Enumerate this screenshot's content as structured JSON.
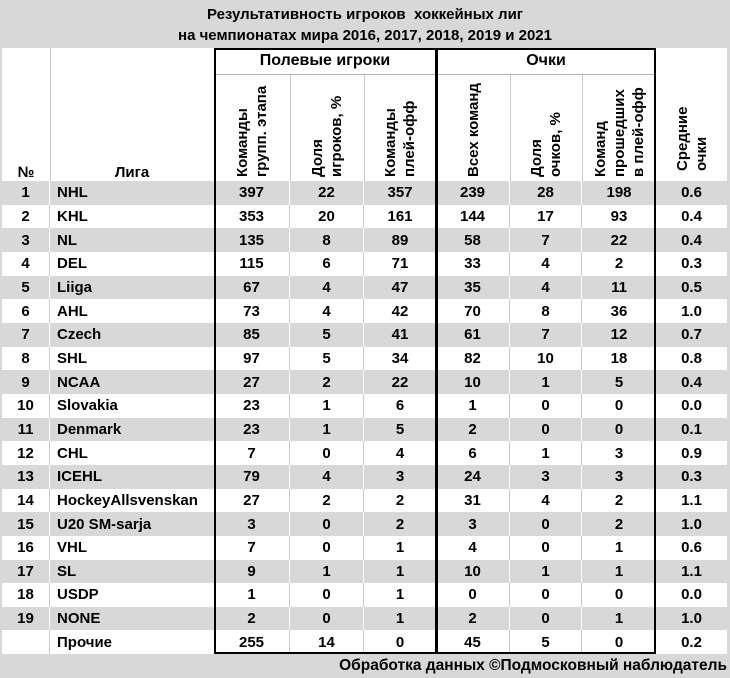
{
  "title": {
    "line1": "Результативность игроков  хоккейных лиг",
    "line2": "на чемпионатах мира 2016, 2017, 2018, 2019 и 2021"
  },
  "footer": {
    "credit": "Обработка данных ©Подмосковный наблюдатель"
  },
  "colors": {
    "stripe_gray": "#d8d8d8",
    "row_white": "#ffffff",
    "thick_border": "#000000",
    "thin_line_on_white": "#c9c9c9",
    "thin_line_on_gray": "#ffffff",
    "text": "#000000"
  },
  "chart_data": {
    "type": "table",
    "title": "Результативность игроков  хоккейных лиг на чемпионатах мира 2016, 2017, 2018, 2019 и 2021",
    "corner_headers": {
      "num": "№",
      "league": "Лига"
    },
    "column_groups": [
      {
        "label": "Полевые игроки",
        "columns": 3
      },
      {
        "label": "Очки",
        "columns": 3
      }
    ],
    "columns": [
      {
        "id": "teams_group_stage",
        "group": "Полевые игроки",
        "label_lines": [
          "Команды",
          "групп. этапа"
        ]
      },
      {
        "id": "players_share_pct",
        "group": "Полевые игроки",
        "label_lines": [
          "Доля",
          "игроков, %"
        ]
      },
      {
        "id": "teams_playoff",
        "group": "Полевые игроки",
        "label_lines": [
          "Команды",
          "плей-офф"
        ]
      },
      {
        "id": "points_all_teams",
        "group": "Очки",
        "label_lines": [
          "Всех команд"
        ]
      },
      {
        "id": "points_share_pct",
        "group": "Очки",
        "label_lines": [
          "Доля",
          "очков, %"
        ]
      },
      {
        "id": "points_playoff_teams",
        "group": "Очки",
        "label_lines": [
          "Команд",
          "прошедших",
          "в плей-офф"
        ]
      },
      {
        "id": "avg_points",
        "group": "",
        "label_lines": [
          "Средние",
          "очки"
        ]
      }
    ],
    "rows": [
      {
        "num": "1",
        "league": "NHL",
        "values": [
          "397",
          "22",
          "357",
          "239",
          "28",
          "198",
          "0.6"
        ]
      },
      {
        "num": "2",
        "league": "KHL",
        "values": [
          "353",
          "20",
          "161",
          "144",
          "17",
          "93",
          "0.4"
        ]
      },
      {
        "num": "3",
        "league": "NL",
        "values": [
          "135",
          "8",
          "89",
          "58",
          "7",
          "22",
          "0.4"
        ]
      },
      {
        "num": "4",
        "league": "DEL",
        "values": [
          "115",
          "6",
          "71",
          "33",
          "4",
          "2",
          "0.3"
        ]
      },
      {
        "num": "5",
        "league": "Liiga",
        "values": [
          "67",
          "4",
          "47",
          "35",
          "4",
          "11",
          "0.5"
        ]
      },
      {
        "num": "6",
        "league": "AHL",
        "values": [
          "73",
          "4",
          "42",
          "70",
          "8",
          "36",
          "1.0"
        ]
      },
      {
        "num": "7",
        "league": "Czech",
        "values": [
          "85",
          "5",
          "41",
          "61",
          "7",
          "12",
          "0.7"
        ]
      },
      {
        "num": "8",
        "league": "SHL",
        "values": [
          "97",
          "5",
          "34",
          "82",
          "10",
          "18",
          "0.8"
        ]
      },
      {
        "num": "9",
        "league": "NCAA",
        "values": [
          "27",
          "2",
          "22",
          "10",
          "1",
          "5",
          "0.4"
        ]
      },
      {
        "num": "10",
        "league": "Slovakia",
        "values": [
          "23",
          "1",
          "6",
          "1",
          "0",
          "0",
          "0.0"
        ]
      },
      {
        "num": "11",
        "league": "Denmark",
        "values": [
          "23",
          "1",
          "5",
          "2",
          "0",
          "0",
          "0.1"
        ]
      },
      {
        "num": "12",
        "league": "CHL",
        "values": [
          "7",
          "0",
          "4",
          "6",
          "1",
          "3",
          "0.9"
        ]
      },
      {
        "num": "13",
        "league": "ICEHL",
        "values": [
          "79",
          "4",
          "3",
          "24",
          "3",
          "3",
          "0.3"
        ]
      },
      {
        "num": "14",
        "league": "HockeyAllsvenskan",
        "values": [
          "27",
          "2",
          "2",
          "31",
          "4",
          "2",
          "1.1"
        ]
      },
      {
        "num": "15",
        "league": "U20 SM-sarja",
        "values": [
          "3",
          "0",
          "2",
          "3",
          "0",
          "2",
          "1.0"
        ]
      },
      {
        "num": "16",
        "league": "VHL",
        "values": [
          "7",
          "0",
          "1",
          "4",
          "0",
          "1",
          "0.6"
        ]
      },
      {
        "num": "17",
        "league": "SL",
        "values": [
          "9",
          "1",
          "1",
          "10",
          "1",
          "1",
          "1.1"
        ]
      },
      {
        "num": "18",
        "league": "USDP",
        "values": [
          "1",
          "0",
          "1",
          "0",
          "0",
          "0",
          "0.0"
        ]
      },
      {
        "num": "19",
        "league": "NONE",
        "values": [
          "2",
          "0",
          "1",
          "2",
          "0",
          "1",
          "1.0"
        ]
      },
      {
        "num": "",
        "league": "Прочие",
        "values": [
          "255",
          "14",
          "0",
          "45",
          "5",
          "0",
          "0.2"
        ]
      }
    ]
  }
}
